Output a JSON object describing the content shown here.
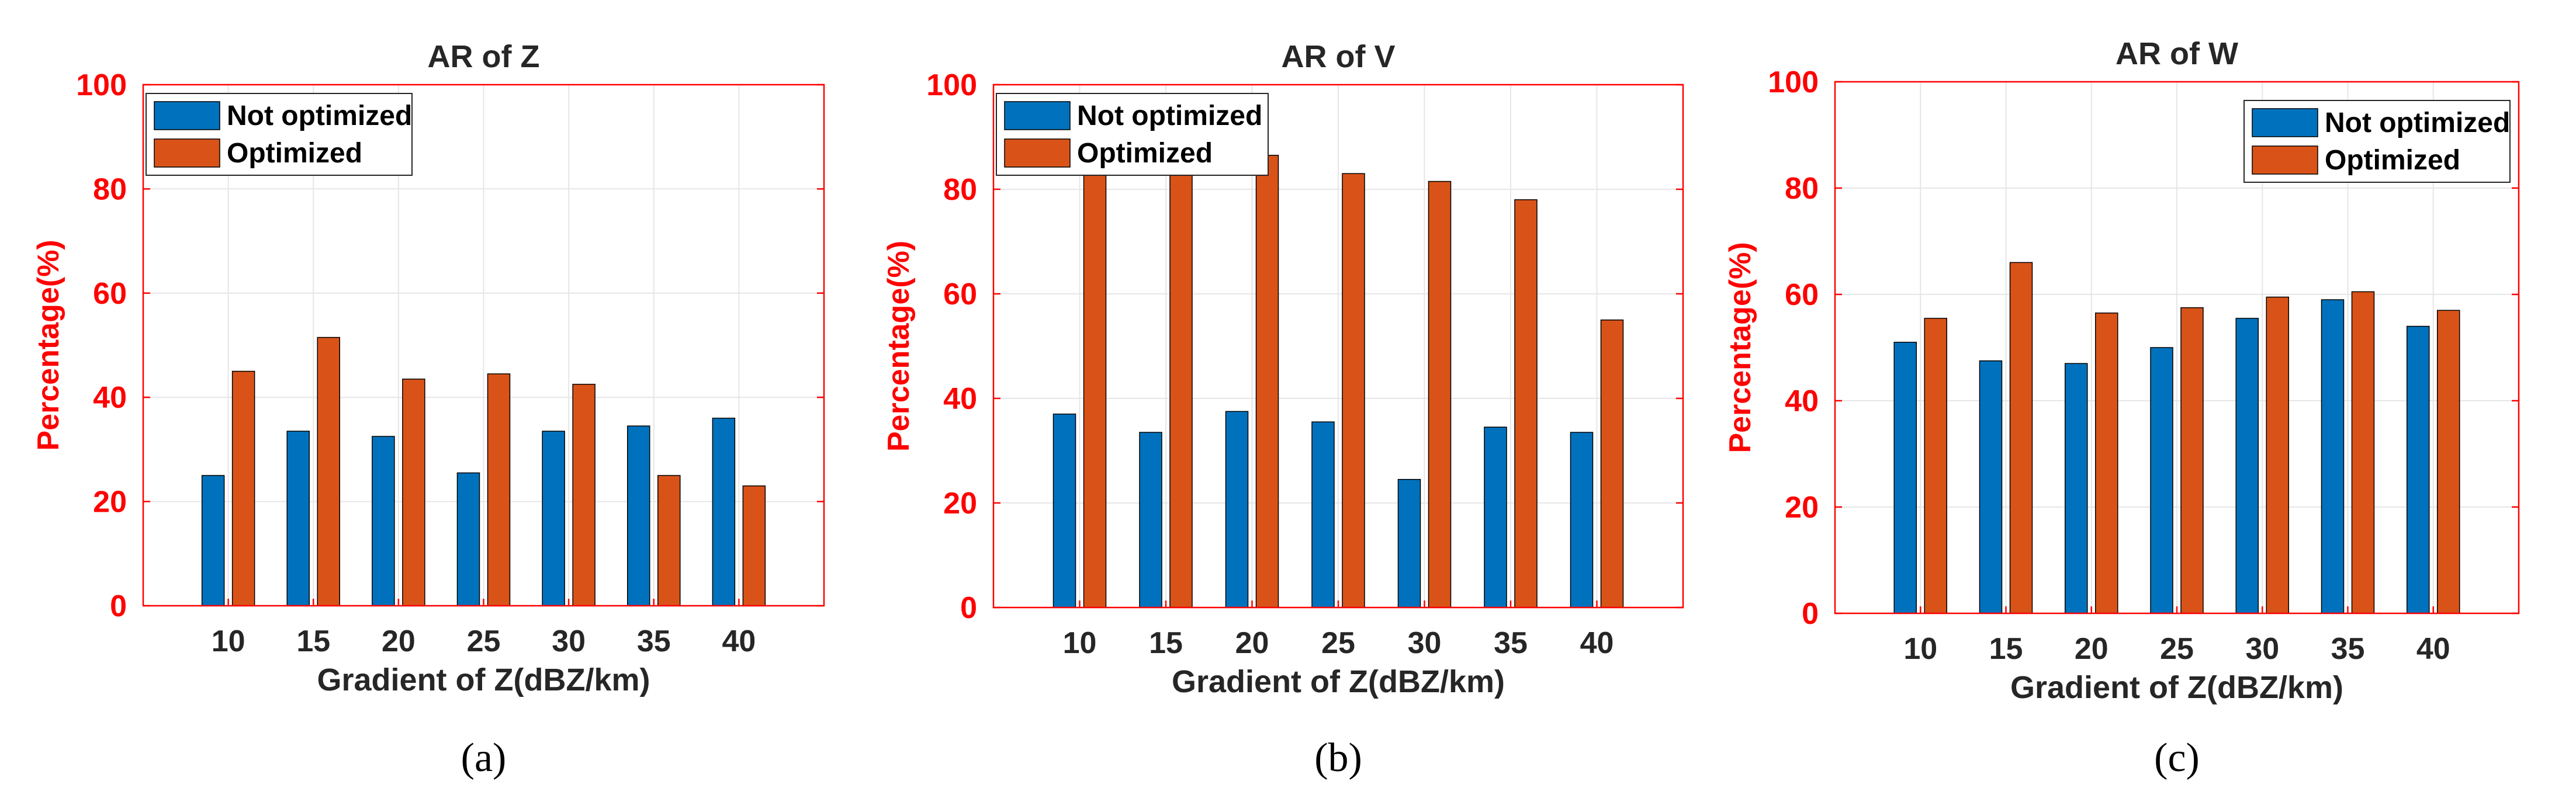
{
  "figure": {
    "colors": {
      "not_optimized": "#0072BD",
      "optimized": "#D95319",
      "axis": "#ff0000",
      "grid": "#e6e6e6",
      "text": "#262626"
    }
  },
  "chart_data": [
    {
      "type": "bar",
      "title": "AR of Z",
      "xlabel": "Gradient of Z(dBZ/km)",
      "ylabel": "Percentage(%)",
      "caption": "(a)",
      "categories": [
        "10",
        "15",
        "20",
        "25",
        "30",
        "35",
        "40"
      ],
      "ylim": [
        0,
        100
      ],
      "yticks": [
        "0",
        "20",
        "40",
        "60",
        "80",
        "100"
      ],
      "grid": true,
      "legend_position": "top-left",
      "series": [
        {
          "name": "Not optimized",
          "values": [
            25,
            33.5,
            32.5,
            25.5,
            33.5,
            34.5,
            36
          ]
        },
        {
          "name": "Optimized",
          "values": [
            45,
            51.5,
            43.5,
            44.5,
            42.5,
            25,
            23
          ]
        }
      ]
    },
    {
      "type": "bar",
      "title": "AR of V",
      "xlabel": "Gradient of Z(dBZ/km)",
      "ylabel": "Percentage(%)",
      "caption": "(b)",
      "categories": [
        "10",
        "15",
        "20",
        "25",
        "30",
        "35",
        "40"
      ],
      "ylim": [
        0,
        100
      ],
      "yticks": [
        "0",
        "20",
        "40",
        "60",
        "80",
        "100"
      ],
      "grid": true,
      "legend_position": "top-left",
      "series": [
        {
          "name": "Not optimized",
          "values": [
            37,
            33.5,
            37.5,
            35.5,
            24.5,
            34.5,
            33.5
          ]
        },
        {
          "name": "Optimized",
          "values": [
            84,
            85,
            86.5,
            83,
            81.5,
            78,
            55
          ]
        }
      ]
    },
    {
      "type": "bar",
      "title": "AR of W",
      "xlabel": "Gradient of Z(dBZ/km)",
      "ylabel": "Percentage(%)",
      "caption": "(c)",
      "categories": [
        "10",
        "15",
        "20",
        "25",
        "30",
        "35",
        "40"
      ],
      "ylim": [
        0,
        100
      ],
      "yticks": [
        "0",
        "20",
        "40",
        "60",
        "80",
        "100"
      ],
      "grid": true,
      "legend_position": "top-right",
      "series": [
        {
          "name": "Not optimized",
          "values": [
            51,
            47.5,
            47,
            50,
            55.5,
            59,
            54
          ]
        },
        {
          "name": "Optimized",
          "values": [
            55.5,
            66,
            56.5,
            57.5,
            59.5,
            60.5,
            57
          ]
        }
      ]
    }
  ]
}
